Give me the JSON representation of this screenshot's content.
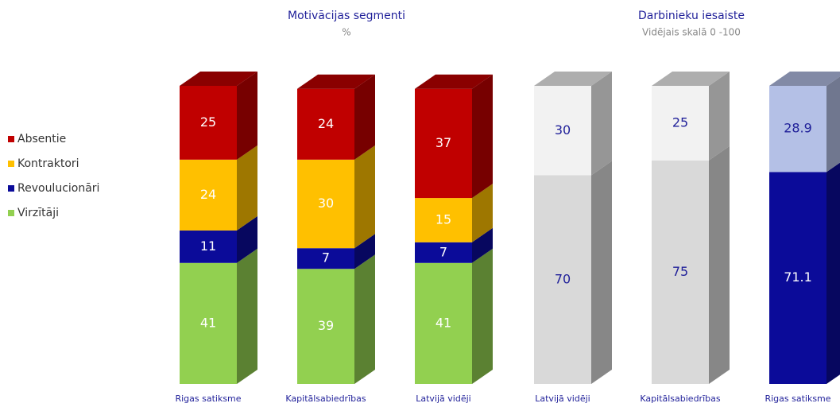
{
  "chart_data": [
    {
      "type": "stacked-bar-3d",
      "title": "Motivācijas segmenti",
      "subtitle": "%",
      "categories": [
        "Rigas satiksme",
        "Kapitālsabiedrības",
        "Latvijā vidēji"
      ],
      "series": [
        {
          "name": "Virzītāji",
          "color": "#92d050",
          "values": [
            41,
            39,
            41
          ]
        },
        {
          "name": "Revoulucionāri",
          "color": "#0b0b99",
          "values": [
            11,
            7,
            7
          ]
        },
        {
          "name": "Kontraktori",
          "color": "#ffc000",
          "values": [
            24,
            30,
            15
          ]
        },
        {
          "name": "Absentie",
          "color": "#c00000",
          "values": [
            25,
            24,
            37
          ]
        }
      ],
      "legend": "left"
    },
    {
      "type": "stacked-bar-3d",
      "title": "Darbinieku iesaiste",
      "subtitle": "Vidējais skalā 0 -100",
      "categories": [
        "Latvijā vidēji",
        "Kapitālsabiedrības",
        "Rigas satiksme"
      ],
      "series": [
        {
          "colors": [
            "#d9d9d9",
            "#d9d9d9",
            "#0b0b99"
          ],
          "values": [
            70,
            75,
            71.1
          ]
        },
        {
          "colors": [
            "#f2f2f2",
            "#f2f2f2",
            "#b4c0e6"
          ],
          "values": [
            30,
            25,
            28.9
          ]
        }
      ]
    }
  ]
}
